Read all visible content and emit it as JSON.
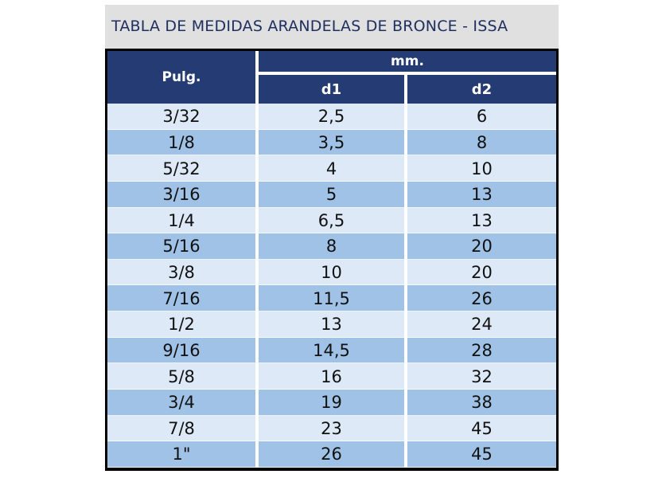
{
  "title": "TABLA DE MEDIDAS ARANDELAS DE BRONCE - ISSA",
  "header": {
    "pulg": "Pulg.",
    "mm": "mm.",
    "d1": "d1",
    "d2": "d2"
  },
  "rows": [
    {
      "pulg": "3/32",
      "d1": "2,5",
      "d2": "6"
    },
    {
      "pulg": "1/8",
      "d1": "3,5",
      "d2": "8"
    },
    {
      "pulg": "5/32",
      "d1": "4",
      "d2": "10"
    },
    {
      "pulg": "3/16",
      "d1": "5",
      "d2": "13"
    },
    {
      "pulg": "1/4",
      "d1": "6,5",
      "d2": "13"
    },
    {
      "pulg": "5/16",
      "d1": "8",
      "d2": "20"
    },
    {
      "pulg": "3/8",
      "d1": "10",
      "d2": "20"
    },
    {
      "pulg": "7/16",
      "d1": "11,5",
      "d2": "26"
    },
    {
      "pulg": "1/2",
      "d1": "13",
      "d2": "24"
    },
    {
      "pulg": "9/16",
      "d1": "14,5",
      "d2": "28"
    },
    {
      "pulg": "5/8",
      "d1": "16",
      "d2": "32"
    },
    {
      "pulg": "3/4",
      "d1": "19",
      "d2": "38"
    },
    {
      "pulg": "7/8",
      "d1": "23",
      "d2": "45"
    },
    {
      "pulg": "1\"",
      "d1": "26",
      "d2": "45"
    }
  ],
  "colors": {
    "header_bg": "#243b73",
    "row_light": "#dde9f6",
    "row_dark": "#9fc2e6",
    "title_bg": "#e0e0e0",
    "title_text": "#1f2f60"
  }
}
